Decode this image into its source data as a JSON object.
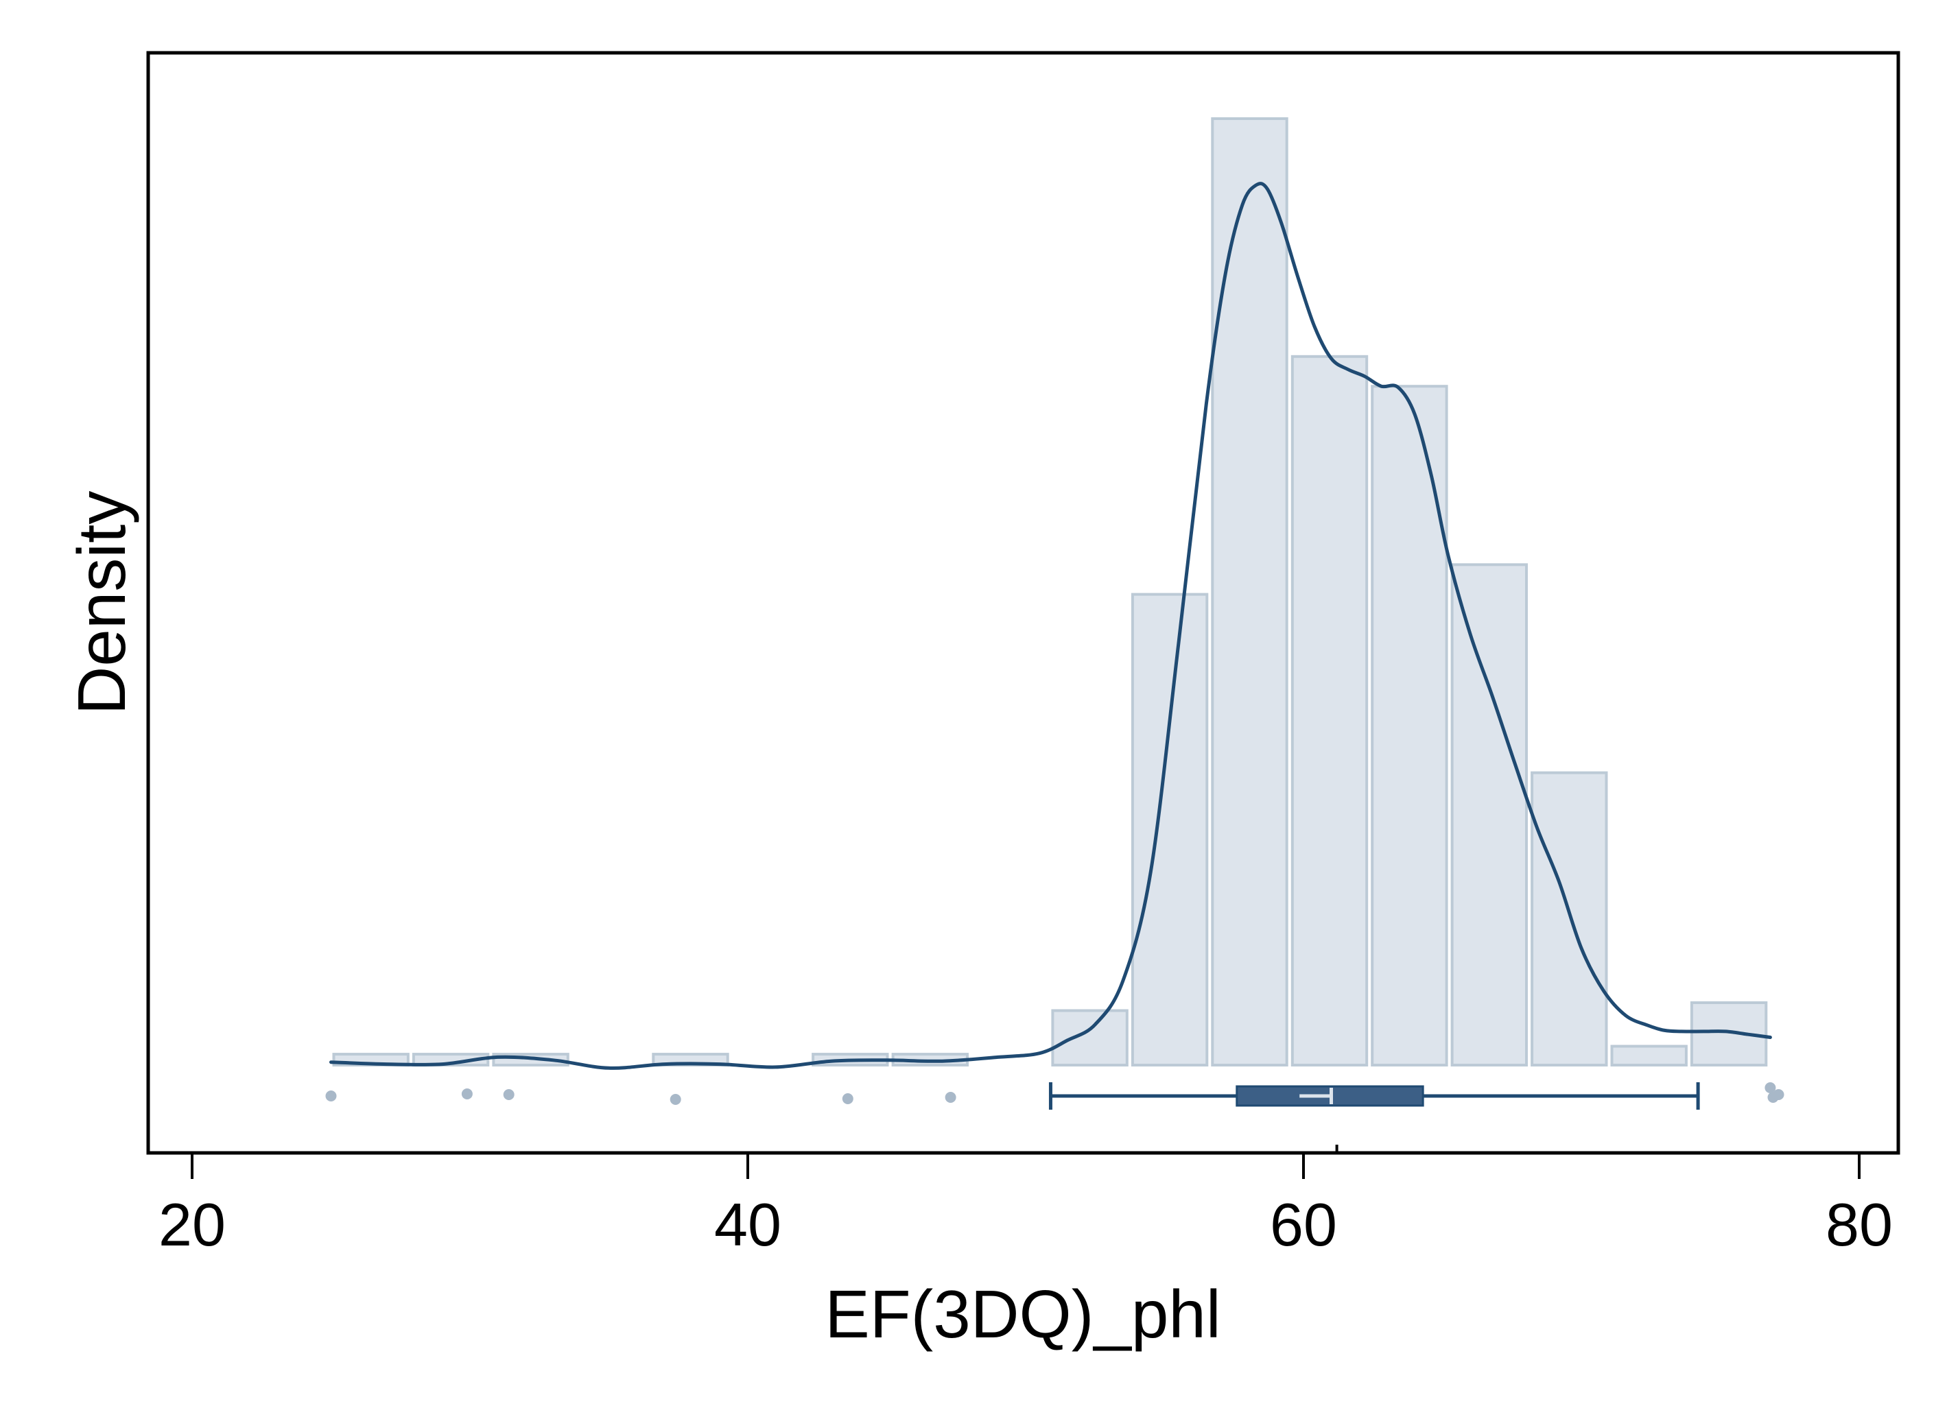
{
  "chart_data": {
    "type": "histogram",
    "title": "",
    "xlabel": "EF(3DQ)_phl",
    "ylabel": "Density",
    "xlim": [
      19.3,
      82
    ],
    "x_ticks": [
      20,
      40,
      60,
      80
    ],
    "x_tick_labels": [
      "20",
      "40",
      "60",
      "80"
    ],
    "y_ticks_shown": false,
    "grid": false,
    "legend": "none",
    "colors": {
      "bar_fill": "#dde4ec",
      "bar_edge": "#bccad6",
      "kde_line": "#1f4a72",
      "box_fill": "#3c5f86",
      "outlier_points": "#a8b8c8",
      "frame": "#000000"
    },
    "histogram": {
      "bin_width": 2.875,
      "bins": [
        {
          "x0": 25.0,
          "x1": 27.875,
          "density": 0.0011
        },
        {
          "x0": 27.875,
          "x1": 30.75,
          "density": 0.0011
        },
        {
          "x0": 30.75,
          "x1": 33.625,
          "density": 0.0011
        },
        {
          "x0": 33.625,
          "x1": 36.5,
          "density": 0.0
        },
        {
          "x0": 36.5,
          "x1": 39.375,
          "density": 0.0011
        },
        {
          "x0": 39.375,
          "x1": 42.25,
          "density": 0.0
        },
        {
          "x0": 42.25,
          "x1": 45.125,
          "density": 0.0011
        },
        {
          "x0": 45.125,
          "x1": 48.0,
          "density": 0.0011
        },
        {
          "x0": 48.0,
          "x1": 50.875,
          "density": 0.0
        },
        {
          "x0": 50.875,
          "x1": 53.75,
          "density": 0.0055
        },
        {
          "x0": 53.75,
          "x1": 56.625,
          "density": 0.0475
        },
        {
          "x0": 56.625,
          "x1": 59.5,
          "density": 0.0955
        },
        {
          "x0": 59.5,
          "x1": 62.375,
          "density": 0.0715
        },
        {
          "x0": 62.375,
          "x1": 65.25,
          "density": 0.0685
        },
        {
          "x0": 65.25,
          "x1": 68.125,
          "density": 0.0505
        },
        {
          "x0": 68.125,
          "x1": 71.0,
          "density": 0.0295
        },
        {
          "x0": 71.0,
          "x1": 73.875,
          "density": 0.0019
        },
        {
          "x0": 73.875,
          "x1": 76.75,
          "density": 0.0063
        }
      ]
    },
    "kde": {
      "x": [
        25.0,
        27.0,
        29.0,
        31.0,
        33.0,
        35.0,
        37.0,
        39.0,
        41.0,
        43.0,
        45.0,
        47.0,
        49.0,
        50.5,
        51.5,
        52.5,
        53.5,
        54.5,
        55.5,
        56.5,
        57.2,
        57.8,
        58.3,
        58.7,
        59.2,
        59.8,
        60.4,
        61.0,
        61.6,
        62.2,
        62.8,
        63.4,
        64.0,
        64.6,
        65.2,
        66.0,
        66.8,
        67.6,
        68.4,
        69.2,
        70.0,
        70.8,
        71.6,
        72.4,
        73.0,
        73.6,
        74.4,
        75.2,
        76.0,
        76.8
      ],
      "y": [
        0.0003,
        0.0001,
        0.0001,
        0.0008,
        0.0005,
        -0.0003,
        0.0001,
        0.0001,
        -0.0002,
        0.0004,
        0.0005,
        0.0004,
        0.0008,
        0.0012,
        0.0025,
        0.0041,
        0.0085,
        0.0195,
        0.0425,
        0.0667,
        0.08,
        0.0868,
        0.0888,
        0.0884,
        0.085,
        0.0795,
        0.0745,
        0.0713,
        0.0702,
        0.0695,
        0.0685,
        0.0684,
        0.0657,
        0.0595,
        0.0515,
        0.0435,
        0.0372,
        0.0305,
        0.024,
        0.0185,
        0.0118,
        0.0075,
        0.005,
        0.004,
        0.0035,
        0.0034,
        0.0034,
        0.0034,
        0.0031,
        0.0028
      ]
    },
    "boxplot": {
      "whisker_low": 50.9,
      "q1": 57.6,
      "median": 61.0,
      "mean": 60.4,
      "q3": 64.3,
      "whisker_high": 74.2,
      "outliers": [
        {
          "x": 25.0,
          "jitter": 0.0
        },
        {
          "x": 29.9,
          "jitter": -0.15
        },
        {
          "x": 31.4,
          "jitter": -0.1
        },
        {
          "x": 37.4,
          "jitter": 0.25
        },
        {
          "x": 43.6,
          "jitter": 0.2
        },
        {
          "x": 47.3,
          "jitter": 0.1
        },
        {
          "x": 76.8,
          "jitter": -0.6
        },
        {
          "x": 76.9,
          "jitter": 0.1
        },
        {
          "x": 77.1,
          "jitter": -0.1
        }
      ]
    }
  }
}
